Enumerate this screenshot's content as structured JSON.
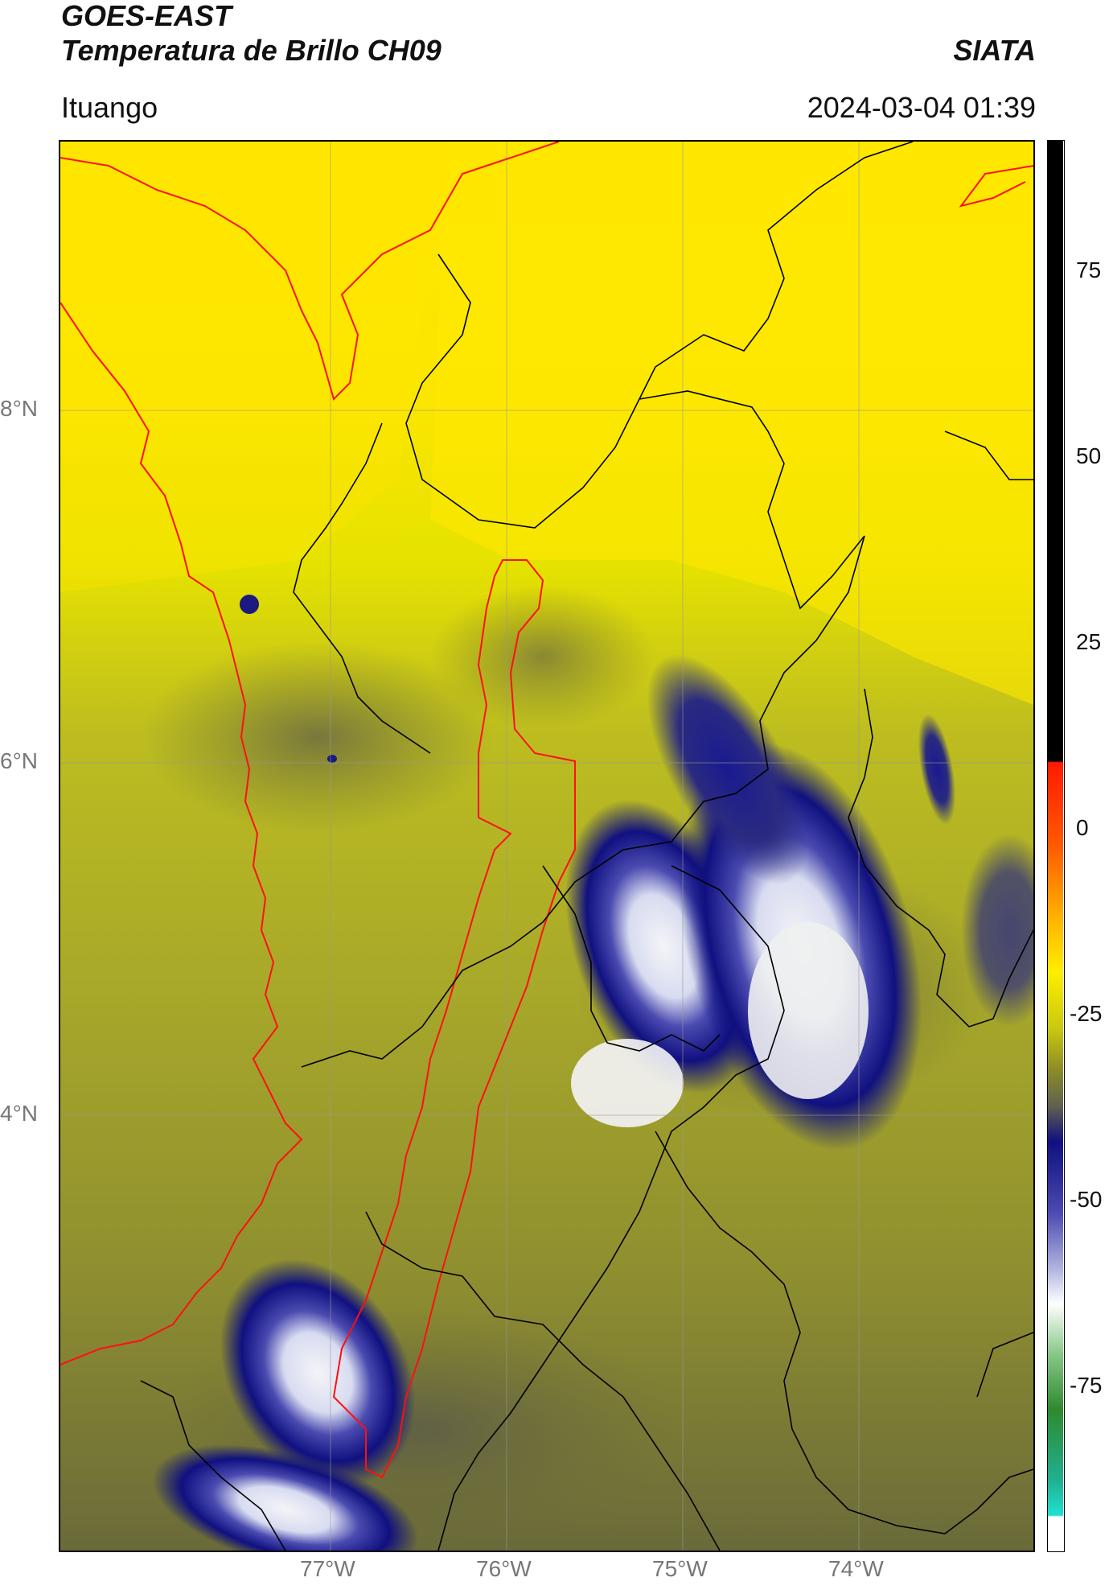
{
  "header": {
    "satellite": "GOES-EAST",
    "product": "Temperatura de Brillo CH09",
    "agency": "SIATA",
    "region": "Ituango",
    "datetime": "2024-03-04 01:39"
  },
  "map": {
    "lat_labels": [
      "8°N",
      "6°N",
      "4°N"
    ],
    "lon_labels": [
      "77°W",
      "76°W",
      "75°W",
      "74°W"
    ]
  },
  "colorbar": {
    "ticks": [
      "75",
      "50",
      "25",
      "0",
      "-25",
      "-50",
      "-75"
    ],
    "range": [
      -100,
      90
    ],
    "colors": {
      "warm": "#000000",
      "hot": "#ff1a00",
      "mid": "#ffee00",
      "olive": "#8a8a28",
      "cold": "#1a1a8a",
      "very_cold": "#ffffff",
      "coldest": "#20e0d0"
    }
  }
}
